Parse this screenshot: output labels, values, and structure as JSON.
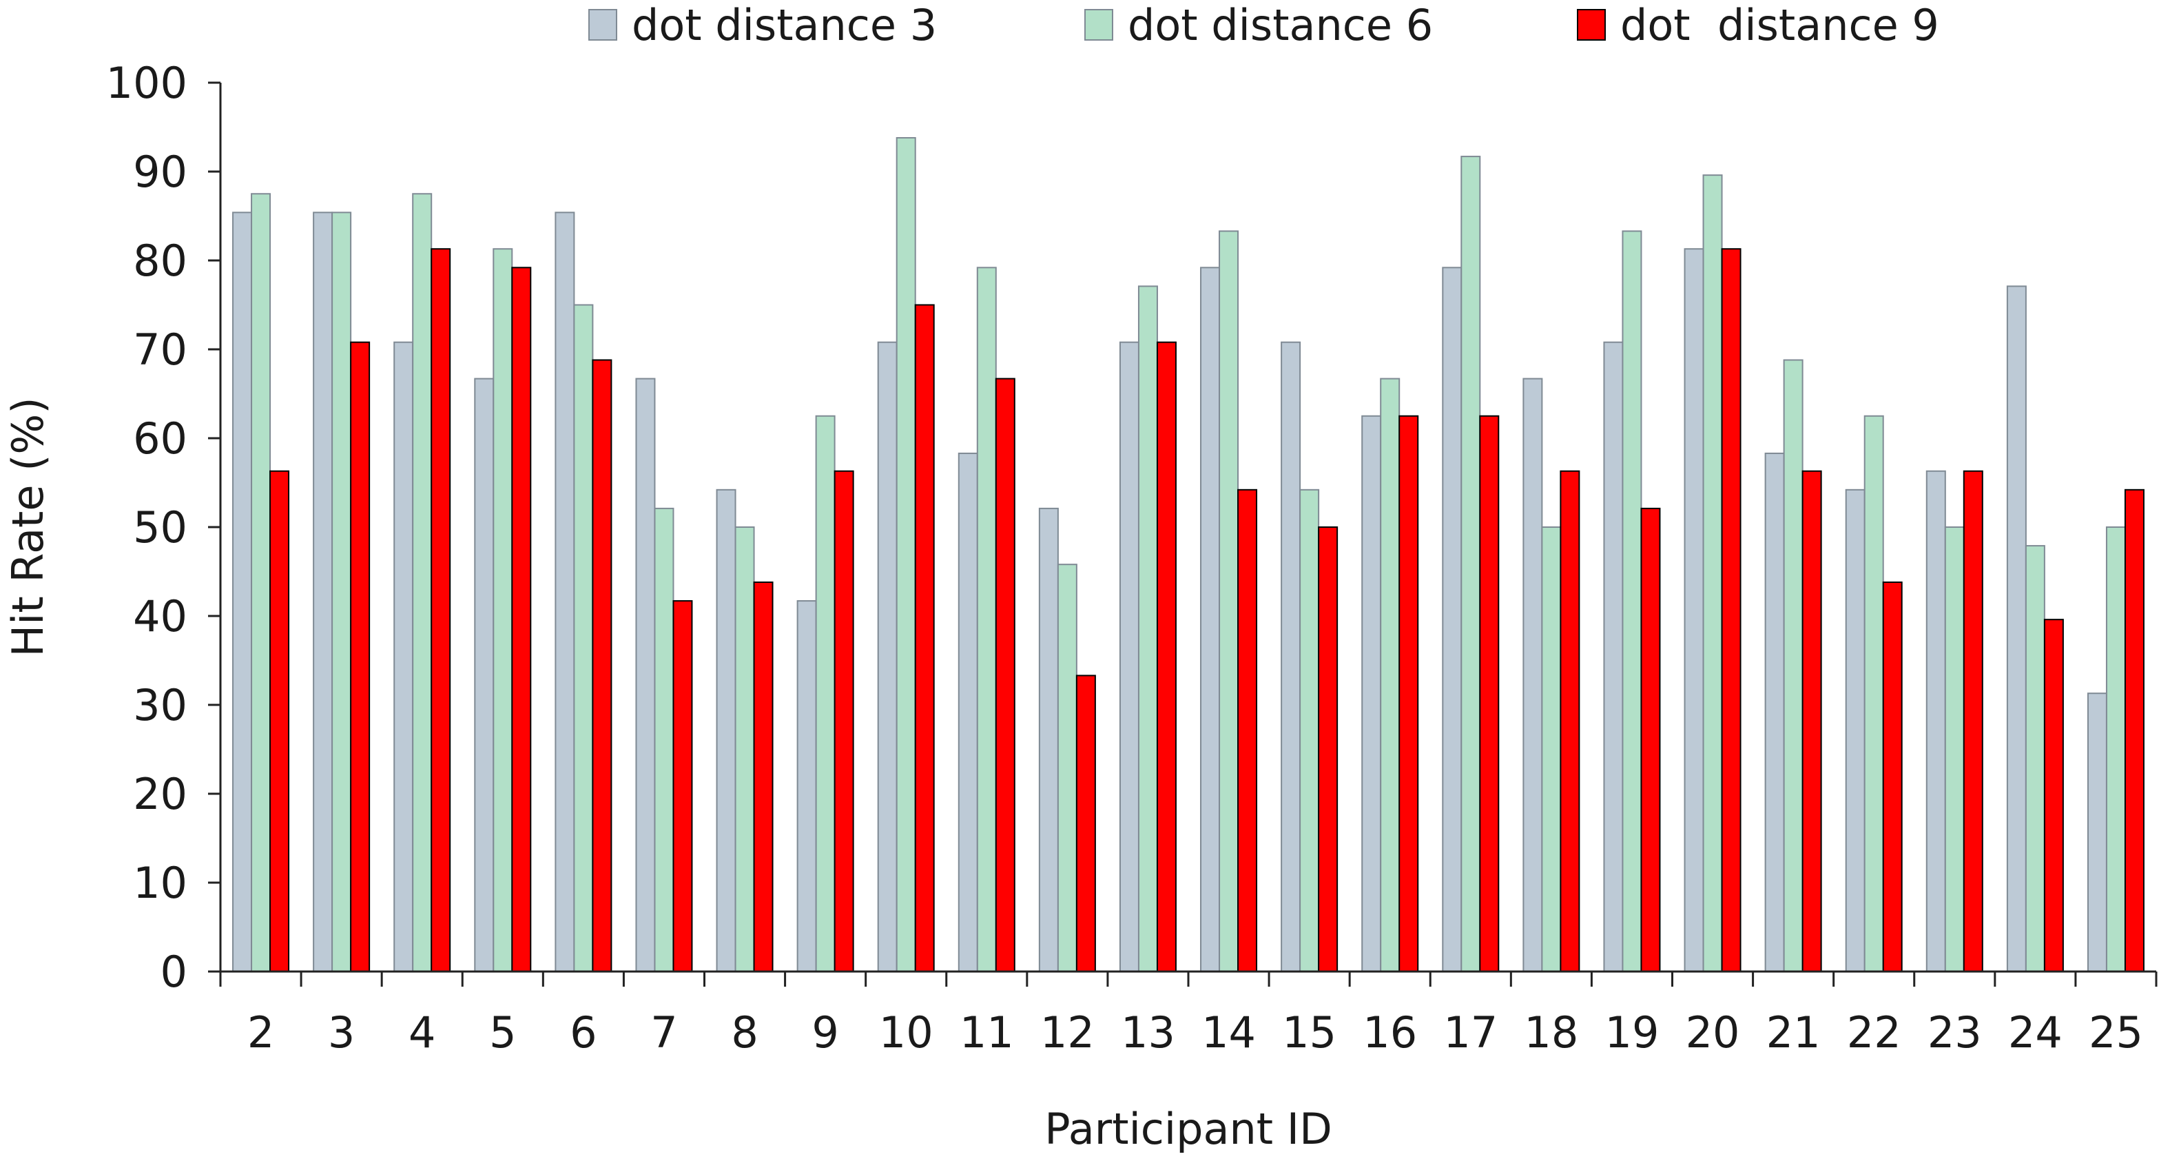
{
  "chart_data": {
    "type": "bar",
    "title": "",
    "xlabel": "Participant ID",
    "ylabel": "Hit Rate (%)",
    "ylim": [
      0,
      100
    ],
    "yticks": [
      0,
      10,
      20,
      30,
      40,
      50,
      60,
      70,
      80,
      90,
      100
    ],
    "grid": false,
    "legend_position": "top",
    "categories": [
      "2",
      "3",
      "4",
      "5",
      "6",
      "7",
      "8",
      "9",
      "10",
      "11",
      "12",
      "13",
      "14",
      "15",
      "16",
      "17",
      "18",
      "19",
      "20",
      "21",
      "22",
      "23",
      "24",
      "25"
    ],
    "series": [
      {
        "name": "dot distance 3",
        "color": "#BDCAD6",
        "values": [
          85.4,
          85.4,
          70.8,
          66.7,
          85.4,
          66.7,
          54.2,
          41.7,
          70.8,
          58.3,
          52.1,
          70.8,
          79.2,
          70.8,
          62.5,
          79.2,
          66.7,
          70.8,
          81.3,
          58.3,
          54.2,
          56.3,
          77.1,
          31.3
        ]
      },
      {
        "name": "dot distance 6",
        "color": "#B2E0C8",
        "values": [
          87.5,
          85.4,
          87.5,
          81.3,
          75.0,
          52.1,
          50.0,
          62.5,
          93.8,
          79.2,
          45.8,
          77.1,
          83.3,
          54.2,
          66.7,
          91.7,
          50.0,
          83.3,
          89.6,
          68.8,
          62.5,
          50.0,
          47.9,
          50.0
        ]
      },
      {
        "name": "dot  distance 9",
        "color": "#FF0000",
        "values": [
          56.3,
          70.8,
          81.3,
          79.2,
          68.8,
          41.7,
          43.8,
          56.3,
          75.0,
          66.7,
          33.3,
          70.8,
          54.2,
          50.0,
          62.5,
          62.5,
          56.3,
          52.1,
          81.3,
          56.3,
          43.8,
          56.3,
          39.6,
          54.2
        ]
      }
    ]
  }
}
